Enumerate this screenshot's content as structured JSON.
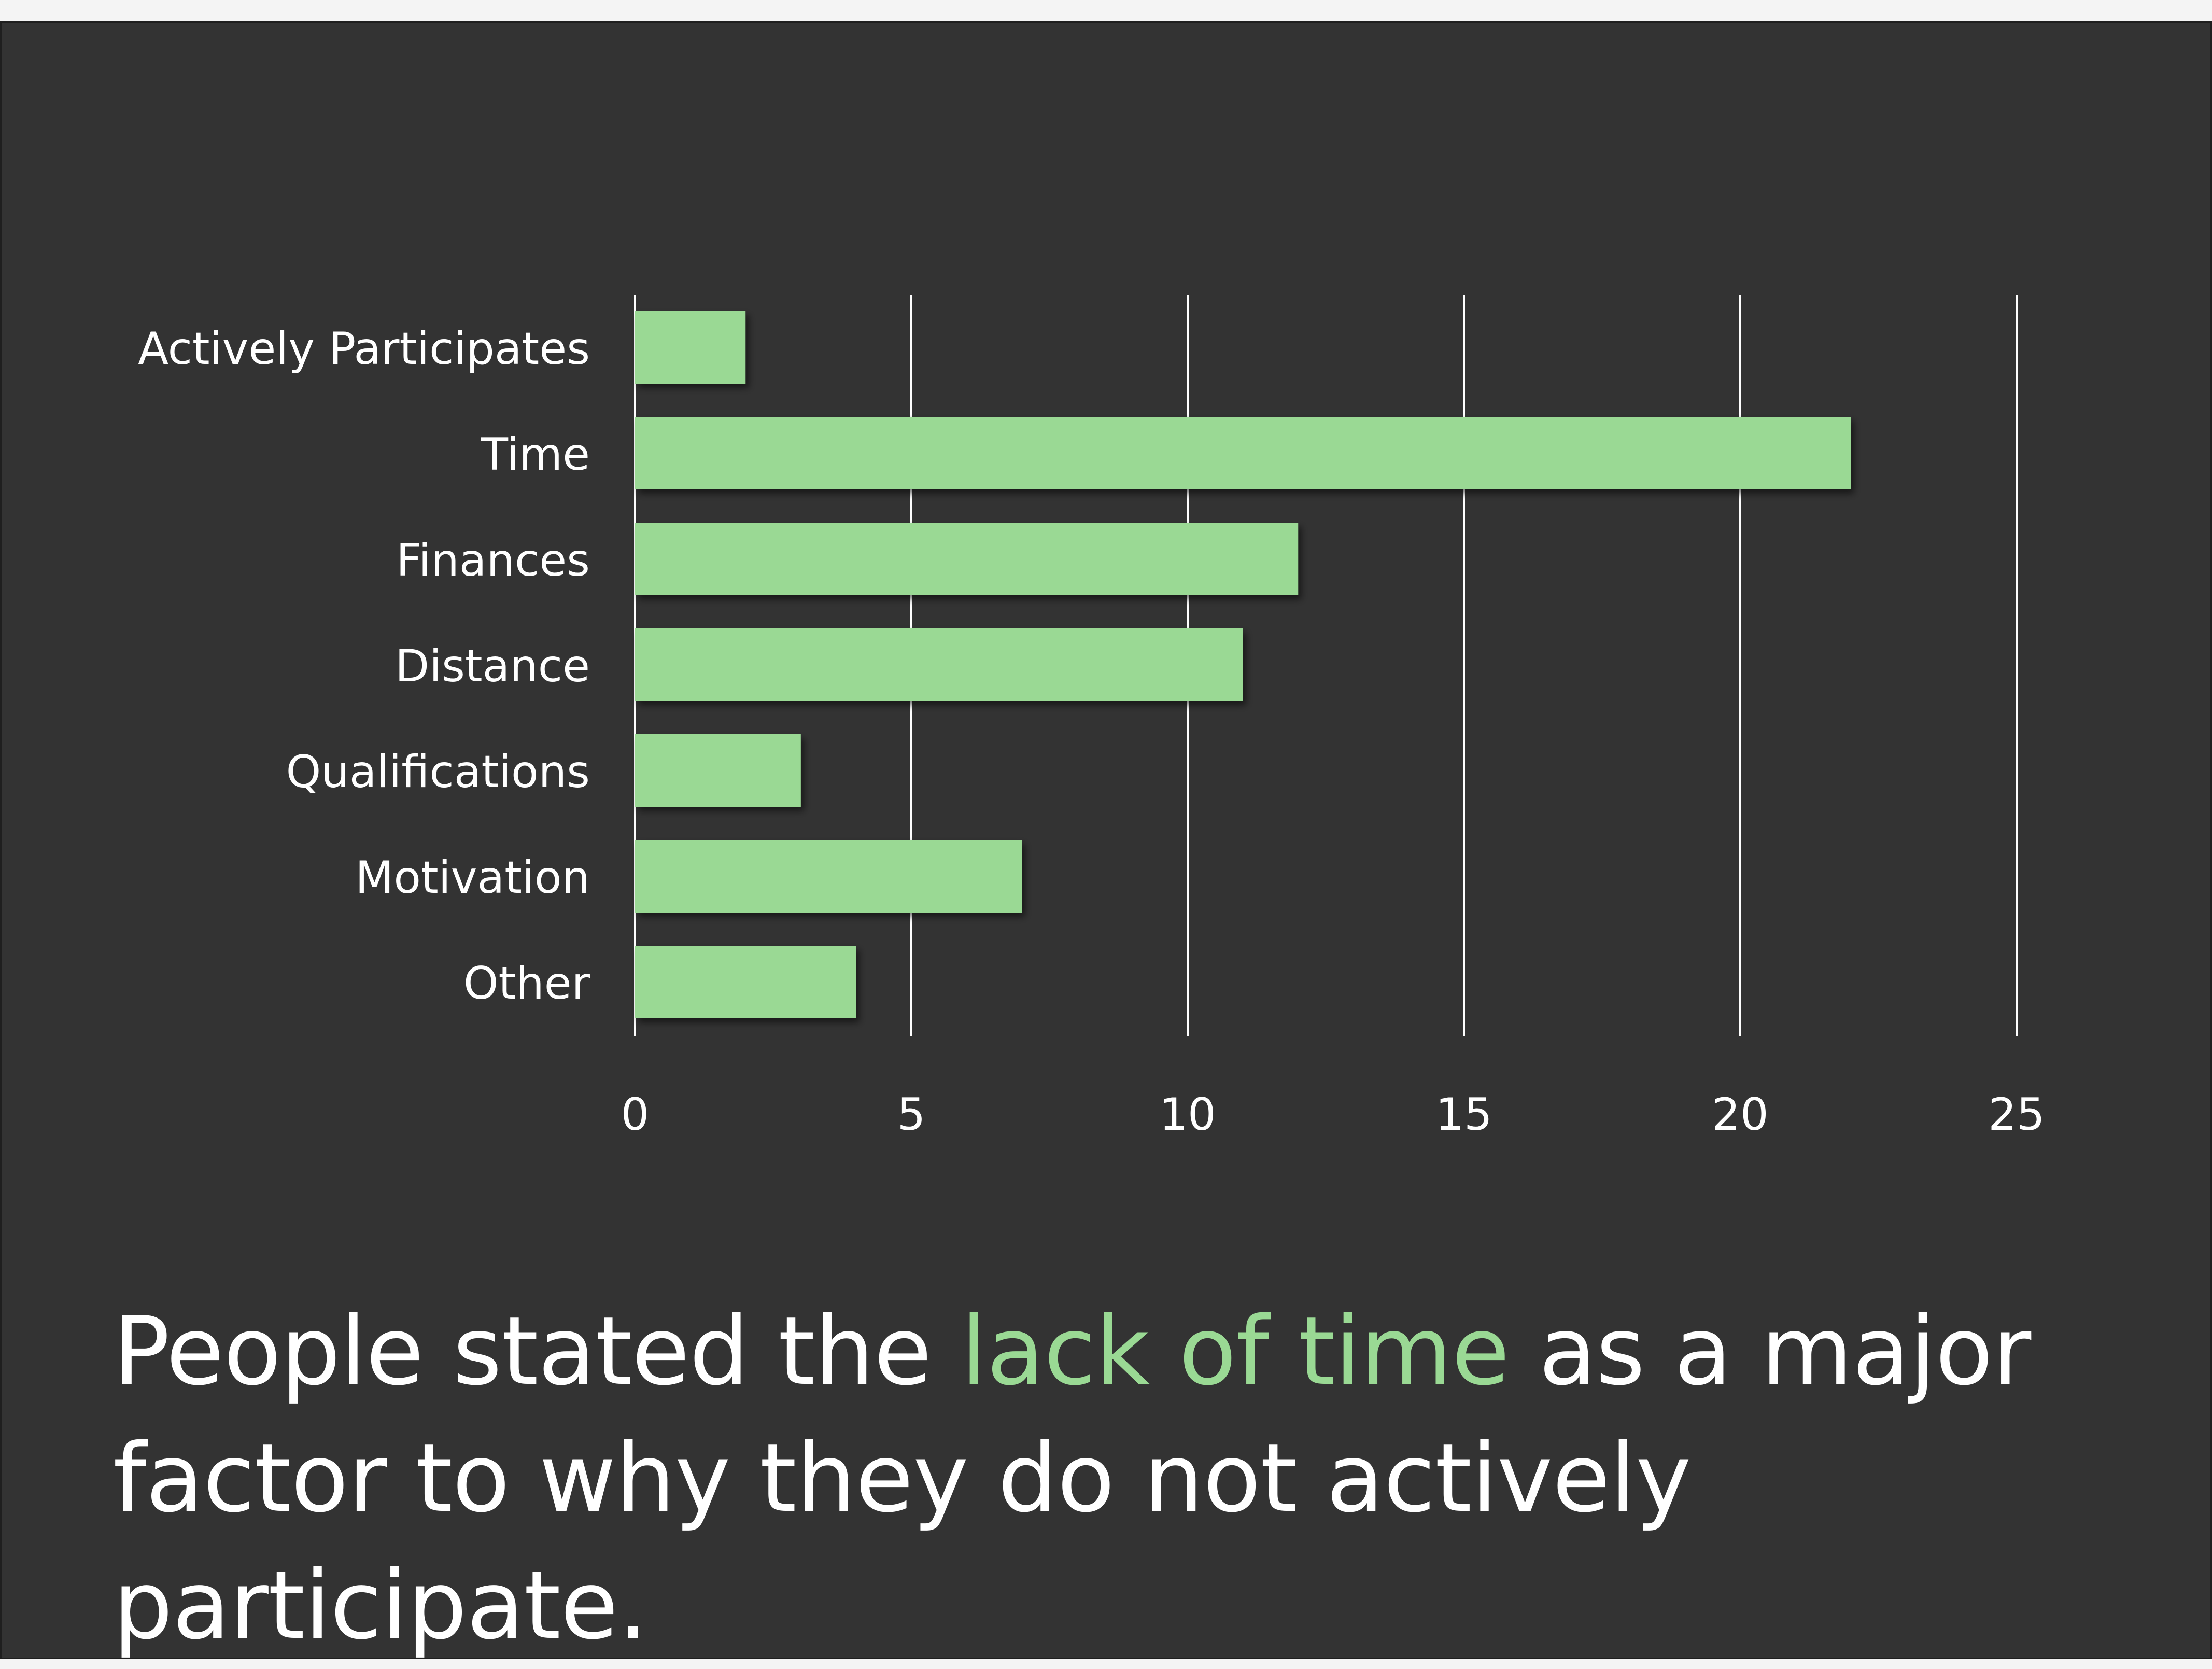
{
  "colors": {
    "background": "#333333",
    "bar": "#9ad994",
    "gridline": "#ffffff",
    "text": "#ffffff",
    "highlight": "#9ad994"
  },
  "chart_data": {
    "type": "bar",
    "orientation": "horizontal",
    "categories": [
      "Actively Participates",
      "Time",
      "Finances",
      "Distance",
      "Qualifications",
      "Motivation",
      "Other"
    ],
    "values": [
      2,
      22,
      12,
      11,
      3,
      7,
      4
    ],
    "xlim": [
      0,
      25
    ],
    "xticks": [
      "0",
      "5",
      "10",
      "15",
      "20",
      "25"
    ],
    "grid": true,
    "title": "",
    "xlabel": "",
    "ylabel": ""
  },
  "caption": {
    "before": "People stated the ",
    "highlight": "lack of time",
    "after": " as a major factor to why they do not actively participate."
  }
}
